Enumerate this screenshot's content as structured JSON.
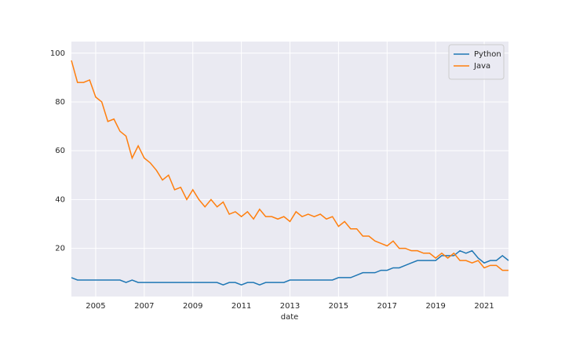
{
  "chart_data": {
    "type": "line",
    "x_label": "date",
    "x": [
      2004,
      2004.25,
      2004.5,
      2004.75,
      2005,
      2005.25,
      2005.5,
      2005.75,
      2006,
      2006.25,
      2006.5,
      2006.75,
      2007,
      2007.25,
      2007.5,
      2007.75,
      2008,
      2008.25,
      2008.5,
      2008.75,
      2009,
      2009.25,
      2009.5,
      2009.75,
      2010,
      2010.25,
      2010.5,
      2010.75,
      2011,
      2011.25,
      2011.5,
      2011.75,
      2012,
      2012.25,
      2012.5,
      2012.75,
      2013,
      2013.25,
      2013.5,
      2013.75,
      2014,
      2014.25,
      2014.5,
      2014.75,
      2015,
      2015.25,
      2015.5,
      2015.75,
      2016,
      2016.25,
      2016.5,
      2016.75,
      2017,
      2017.25,
      2017.5,
      2017.75,
      2018,
      2018.25,
      2018.5,
      2018.75,
      2019,
      2019.25,
      2019.5,
      2019.75,
      2020,
      2020.25,
      2020.5,
      2020.75,
      2021,
      2021.25,
      2021.5,
      2021.75,
      2022
    ],
    "series": [
      {
        "name": "Python",
        "color": "#1f77b4",
        "values": [
          8,
          7,
          7,
          7,
          7,
          7,
          7,
          7,
          7,
          6,
          7,
          6,
          6,
          6,
          6,
          6,
          6,
          6,
          6,
          6,
          6,
          6,
          6,
          6,
          6,
          5,
          6,
          6,
          5,
          6,
          6,
          5,
          6,
          6,
          6,
          6,
          7,
          7,
          7,
          7,
          7,
          7,
          7,
          7,
          8,
          8,
          8,
          9,
          10,
          10,
          10,
          11,
          11,
          12,
          12,
          13,
          14,
          15,
          15,
          15,
          15,
          17,
          17,
          17,
          19,
          18,
          19,
          16,
          14,
          15,
          15,
          17,
          15
        ]
      },
      {
        "name": "Java",
        "color": "#ff7f0e",
        "values": [
          97,
          88,
          88,
          89,
          82,
          80,
          72,
          73,
          68,
          66,
          57,
          62,
          57,
          55,
          52,
          48,
          50,
          44,
          45,
          40,
          44,
          40,
          37,
          40,
          37,
          39,
          34,
          35,
          33,
          35,
          32,
          36,
          33,
          33,
          32,
          33,
          31,
          35,
          33,
          34,
          33,
          34,
          32,
          33,
          29,
          31,
          28,
          28,
          25,
          25,
          23,
          22,
          21,
          23,
          20,
          20,
          19,
          19,
          18,
          18,
          16,
          18,
          16,
          18,
          15,
          15,
          14,
          15,
          12,
          13,
          13,
          11,
          11
        ]
      }
    ],
    "xlim": [
      2004,
      2022
    ],
    "xticks": [
      2005,
      2007,
      2009,
      2011,
      2013,
      2015,
      2017,
      2019,
      2021
    ],
    "ylim": [
      0.25,
      104.75
    ],
    "yticks": [
      20,
      40,
      60,
      80,
      100
    ],
    "grid": true,
    "legend": "upper right"
  }
}
